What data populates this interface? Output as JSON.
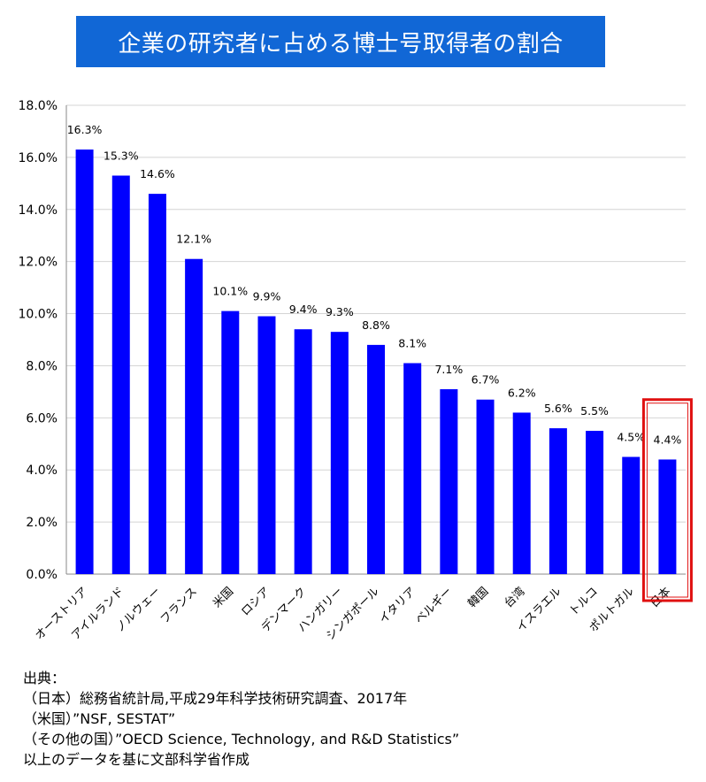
{
  "title": "企業の研究者に占める博士号取得者の割合",
  "chart_data": {
    "type": "bar",
    "title": "企業の研究者に占める博士号取得者の割合",
    "categories": [
      "オーストリア",
      "アイルランド",
      "ノルウェー",
      "フランス",
      "米国",
      "ロシア",
      "デンマーク",
      "ハンガリー",
      "シンガポール",
      "イタリア",
      "ベルギー",
      "韓国",
      "台湾",
      "イスラエル",
      "トルコ",
      "ポルトガル",
      "日本"
    ],
    "values": [
      16.3,
      15.3,
      14.6,
      12.1,
      10.1,
      9.9,
      9.4,
      9.3,
      8.8,
      8.1,
      7.1,
      6.7,
      6.2,
      5.6,
      5.5,
      4.5,
      4.4
    ],
    "data_labels": [
      "16.3%",
      "15.3%",
      "14.6%",
      "12.1%",
      "10.1%",
      "9.9%",
      "9.4%",
      "9.3%",
      "8.8%",
      "8.1%",
      "7.1%",
      "6.7%",
      "6.2%",
      "5.6%",
      "5.5%",
      "4.5%",
      "4.4%"
    ],
    "yticks": [
      "0.0%",
      "2.0%",
      "4.0%",
      "6.0%",
      "8.0%",
      "10.0%",
      "12.0%",
      "14.0%",
      "16.0%",
      "18.0%"
    ],
    "ylim": [
      0,
      18
    ],
    "grid": true,
    "bar_color": "#0000ff",
    "highlight_category": "日本",
    "highlight_color": "#e01010"
  },
  "source": {
    "heading": "出典：",
    "lines": [
      "（日本）総務省統計局,平成29年科学技術研究調査、2017年",
      "（米国）”NSF, SESTAT”",
      "（その他の国）”OECD Science, Technology, and R&D Statistics”",
      "以上のデータを基に文部科学省作成"
    ]
  }
}
